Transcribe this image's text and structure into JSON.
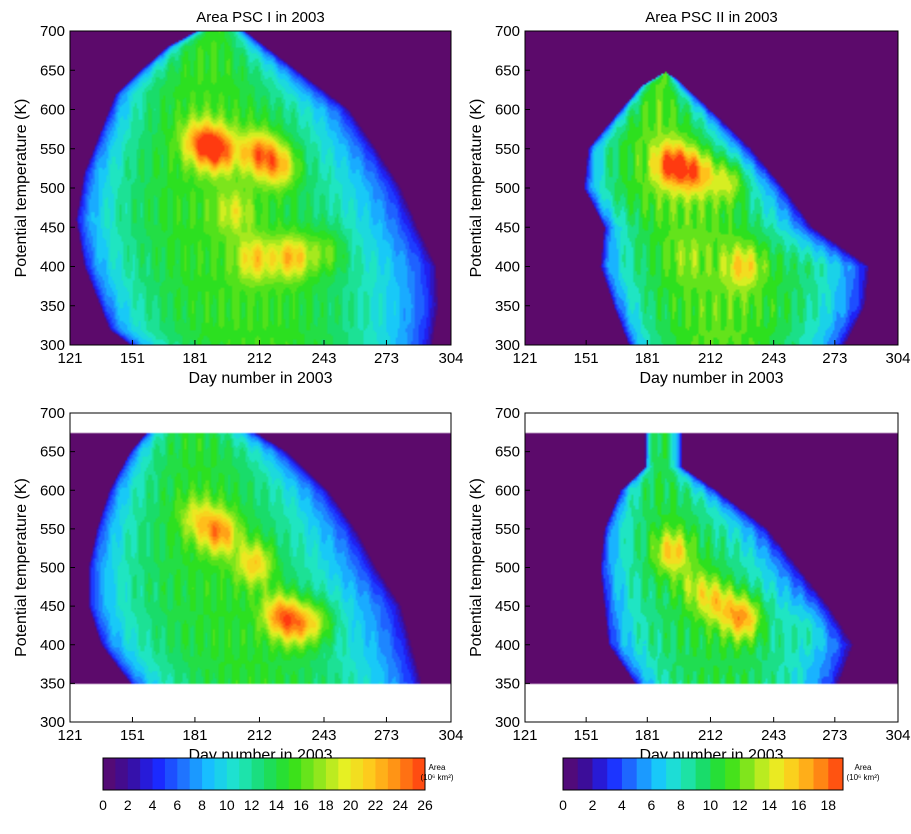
{
  "chart_data": [
    {
      "type": "heatmap",
      "title": "Area PSC I in 2003",
      "xlabel": "Day number in 2003",
      "ylabel": "Potential temperature (K)",
      "xlim": [
        121,
        304
      ],
      "ylim": [
        300,
        700
      ],
      "xticks": [
        121,
        151,
        181,
        212,
        243,
        273,
        304
      ],
      "yticks": [
        300,
        350,
        400,
        450,
        500,
        550,
        600,
        650,
        700
      ],
      "valid_range": [
        300,
        700
      ],
      "colorbar": "A",
      "z_peak": 22,
      "pattern": {
        "start": [
          [
            300,
            150
          ],
          [
            320,
            140
          ],
          [
            400,
            128
          ],
          [
            460,
            124
          ],
          [
            520,
            128
          ],
          [
            560,
            134
          ],
          [
            620,
            143
          ],
          [
            650,
            155
          ],
          [
            680,
            168
          ],
          [
            700,
            182
          ]
        ],
        "end": [
          [
            300,
            295
          ],
          [
            350,
            298
          ],
          [
            400,
            297
          ],
          [
            450,
            288
          ],
          [
            500,
            280
          ],
          [
            550,
            268
          ],
          [
            600,
            255
          ],
          [
            650,
            230
          ],
          [
            700,
            205
          ]
        ],
        "hotspots": [
          [
            192,
            548,
            24
          ],
          [
            212,
            545,
            23
          ],
          [
            222,
            528,
            22
          ],
          [
            183,
            560,
            21
          ],
          [
            228,
            412,
            22
          ],
          [
            210,
            410,
            20
          ],
          [
            245,
            420,
            18
          ],
          [
            200,
            470,
            18
          ]
        ]
      }
    },
    {
      "type": "heatmap",
      "title": "Area PSC II in 2003",
      "xlabel": "Day number in 2003",
      "ylabel": "Potential temperature (K)",
      "xlim": [
        121,
        304
      ],
      "ylim": [
        300,
        700
      ],
      "xticks": [
        121,
        151,
        181,
        212,
        243,
        273,
        304
      ],
      "yticks": [
        300,
        350,
        400,
        450,
        500,
        550,
        600,
        650,
        700
      ],
      "valid_range": [
        300,
        700
      ],
      "colorbar": "B",
      "z_peak": 17,
      "pattern": {
        "start": [
          [
            300,
            172
          ],
          [
            340,
            166
          ],
          [
            400,
            158
          ],
          [
            450,
            160
          ],
          [
            500,
            150
          ],
          [
            550,
            152
          ],
          [
            600,
            168
          ],
          [
            630,
            178
          ],
          [
            660,
            198
          ]
        ],
        "end": [
          [
            300,
            278
          ],
          [
            350,
            288
          ],
          [
            400,
            290
          ],
          [
            450,
            262
          ],
          [
            500,
            248
          ],
          [
            550,
            232
          ],
          [
            600,
            212
          ],
          [
            640,
            195
          ],
          [
            660,
            182
          ]
        ],
        "hotspots": [
          [
            193,
            530,
            18
          ],
          [
            205,
            520,
            17
          ],
          [
            222,
            510,
            16
          ],
          [
            228,
            400,
            15
          ],
          [
            264,
            395,
            11
          ],
          [
            200,
            410,
            12
          ],
          [
            245,
            510,
            12
          ]
        ]
      }
    },
    {
      "type": "heatmap",
      "title": "",
      "xlabel": "Day number in 2003",
      "ylabel": "Potential temperature (K)",
      "xlim": [
        121,
        304
      ],
      "ylim": [
        300,
        700
      ],
      "xticks": [
        121,
        151,
        181,
        212,
        243,
        273,
        304
      ],
      "yticks": [
        300,
        350,
        400,
        450,
        500,
        550,
        600,
        650,
        700
      ],
      "valid_range": [
        350,
        675
      ],
      "colorbar": "A",
      "z_peak": 21,
      "pattern": {
        "start": [
          [
            350,
            150
          ],
          [
            400,
            136
          ],
          [
            450,
            130
          ],
          [
            500,
            130
          ],
          [
            550,
            134
          ],
          [
            600,
            140
          ],
          [
            650,
            150
          ],
          [
            675,
            158
          ]
        ],
        "end": [
          [
            350,
            290
          ],
          [
            400,
            285
          ],
          [
            450,
            280
          ],
          [
            500,
            268
          ],
          [
            550,
            258
          ],
          [
            600,
            245
          ],
          [
            650,
            225
          ],
          [
            675,
            210
          ]
        ],
        "hotspots": [
          [
            193,
            545,
            22
          ],
          [
            210,
            505,
            21
          ],
          [
            222,
            440,
            22
          ],
          [
            230,
            425,
            21
          ],
          [
            182,
            565,
            18
          ],
          [
            240,
            430,
            19
          ]
        ]
      }
    },
    {
      "type": "heatmap",
      "title": "",
      "xlabel": "Day number in 2003",
      "ylabel": "Potential temperature (K)",
      "xlim": [
        121,
        304
      ],
      "ylim": [
        300,
        700
      ],
      "xticks": [
        121,
        151,
        181,
        212,
        243,
        273,
        304
      ],
      "yticks": [
        300,
        350,
        400,
        450,
        500,
        550,
        600,
        650,
        700
      ],
      "valid_range": [
        350,
        675
      ],
      "colorbar": "B",
      "z_peak": 15,
      "pattern": {
        "start": [
          [
            350,
            175
          ],
          [
            400,
            162
          ],
          [
            450,
            160
          ],
          [
            500,
            158
          ],
          [
            550,
            160
          ],
          [
            600,
            168
          ],
          [
            630,
            180
          ]
        ],
        "end": [
          [
            350,
            275
          ],
          [
            400,
            282
          ],
          [
            450,
            270
          ],
          [
            500,
            255
          ],
          [
            550,
            240
          ],
          [
            600,
            215
          ],
          [
            630,
            198
          ]
        ],
        "hotspots": [
          [
            193,
            520,
            15
          ],
          [
            228,
            435,
            17
          ],
          [
            215,
            455,
            14
          ],
          [
            262,
            425,
            12
          ],
          [
            205,
            475,
            12
          ]
        ]
      }
    }
  ],
  "colorbars": [
    {
      "id": "A",
      "label_line1": "Area",
      "label_line2": "(10⁶ km²)",
      "ticks": [
        "0",
        "2",
        "4",
        "6",
        "8",
        "10",
        "12",
        "14",
        "16",
        "18",
        "20",
        "22",
        "24",
        "26"
      ],
      "min": 0,
      "max": 26,
      "levels": 26
    },
    {
      "id": "B",
      "label_line1": "Area",
      "label_line2": "(10⁶ km²)",
      "ticks": [
        "0",
        "2",
        "4",
        "6",
        "8",
        "10",
        "12",
        "14",
        "16",
        "18"
      ],
      "min": 0,
      "max": 19,
      "levels": 19
    }
  ],
  "colors": {
    "background": "#5c0a6b",
    "stops": [
      "#5c0a6b",
      "#3a0d9c",
      "#1b24ff",
      "#1f74ff",
      "#17c4ff",
      "#1fe6c8",
      "#19dc6a",
      "#2ee01a",
      "#8ae61c",
      "#e6f023",
      "#ffc81c",
      "#ff8a14",
      "#ff3a10"
    ]
  }
}
